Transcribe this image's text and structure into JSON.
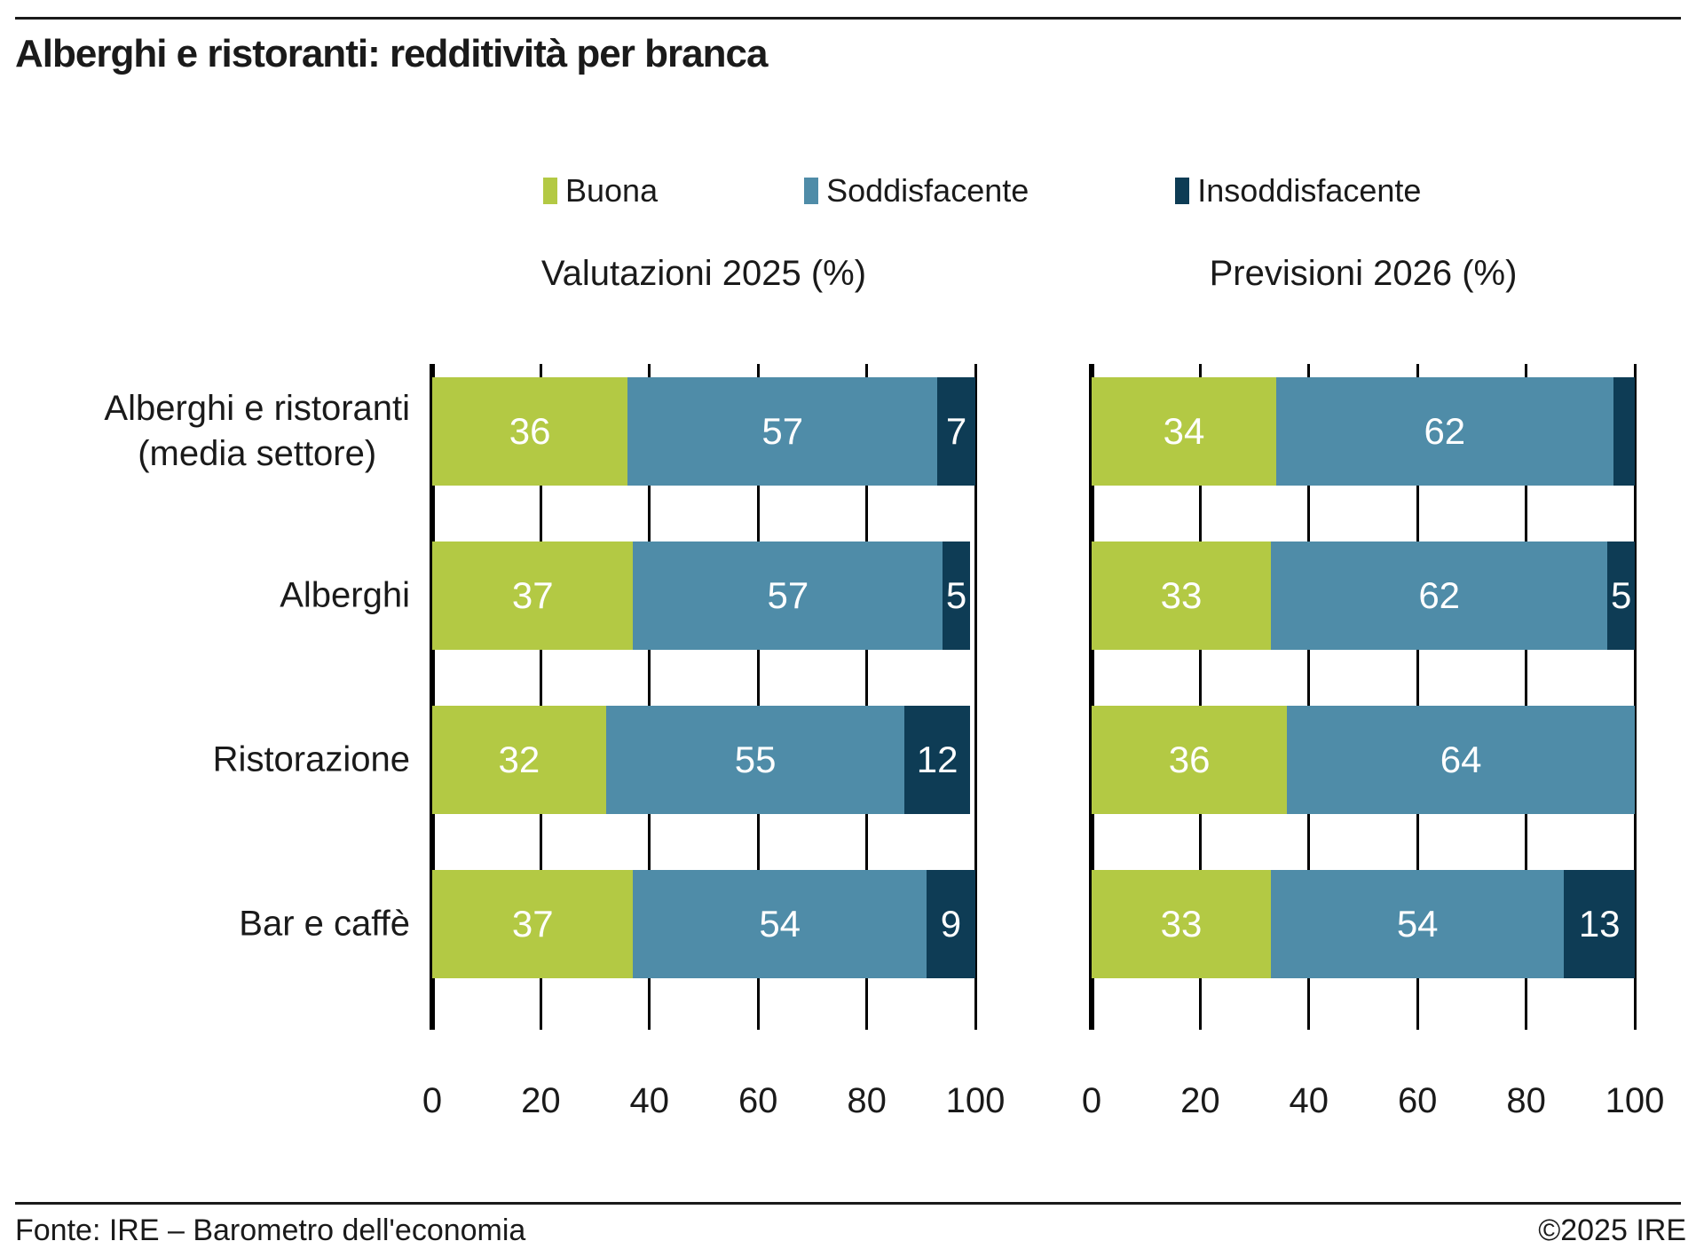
{
  "page": {
    "title": "Alberghi e ristoranti: redditività per branca",
    "footer_source": "Fonte: IRE – Barometro dell'economia",
    "footer_copyright": "©2025 IRE"
  },
  "legend": {
    "items": [
      {
        "label": "Buona",
        "color": "#b3c944"
      },
      {
        "label": "Soddisfacente",
        "color": "#4f8ca8"
      },
      {
        "label": "Insoddisfacente",
        "color": "#0e3c55"
      }
    ]
  },
  "chart_data": {
    "type": "bar",
    "variant": "horizontal-stacked",
    "unit": "%",
    "xlim": [
      0,
      100
    ],
    "xticks": [
      0,
      20,
      40,
      60,
      80,
      100
    ],
    "grid": true,
    "legend_position": "top",
    "categories": [
      "Alberghi e ristoranti\n(media settore)",
      "Alberghi",
      "Ristorazione",
      "Bar e caffè"
    ],
    "series_names": [
      "Buona",
      "Soddisfacente",
      "Insoddisfacente"
    ],
    "colors": [
      "#b3c944",
      "#4f8ca8",
      "#0e3c55"
    ],
    "panels": [
      {
        "title": "Valutazioni 2025 (%)",
        "series": [
          {
            "name": "Buona",
            "values": [
              36,
              37,
              32,
              37
            ]
          },
          {
            "name": "Soddisfacente",
            "values": [
              57,
              57,
              55,
              54
            ]
          },
          {
            "name": "Insoddisfacente",
            "values": [
              7,
              5,
              12,
              9
            ]
          }
        ]
      },
      {
        "title": "Previsioni 2026 (%)",
        "series": [
          {
            "name": "Buona",
            "values": [
              34,
              33,
              36,
              33
            ]
          },
          {
            "name": "Soddisfacente",
            "values": [
              62,
              62,
              64,
              54
            ]
          },
          {
            "name": "Insoddisfacente",
            "values": [
              4,
              5,
              0,
              13
            ]
          }
        ]
      }
    ]
  }
}
